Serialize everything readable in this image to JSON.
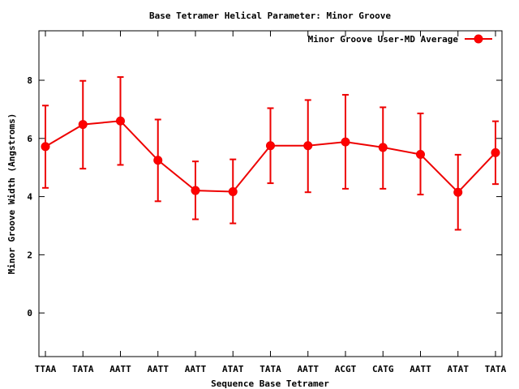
{
  "chart_data": {
    "type": "line",
    "title": "Base Tetramer Helical Parameter: Minor Groove",
    "xlabel": "Sequence Base Tetramer",
    "ylabel": "Minor Groove Width (Angstroms)",
    "ylim": [
      -1.5,
      9.7
    ],
    "yticks": [
      0,
      2,
      4,
      6,
      8
    ],
    "grid": false,
    "legend_position": "top-right",
    "categories": [
      "TTAA",
      "TATA",
      "AATT",
      "AATT",
      "AATT",
      "ATAT",
      "TATA",
      "AATT",
      "ACGT",
      "CATG",
      "AATT",
      "ATAT",
      "TATA"
    ],
    "series": [
      {
        "name": "Minor Groove User-MD Average",
        "color": "#ff0000",
        "values": [
          5.72,
          6.48,
          6.6,
          5.25,
          4.21,
          4.17,
          5.75,
          5.75,
          5.88,
          5.69,
          5.45,
          4.15,
          5.51
        ],
        "err_low": [
          4.3,
          4.96,
          5.09,
          3.84,
          3.22,
          3.08,
          4.46,
          4.15,
          4.27,
          4.27,
          4.07,
          2.86,
          4.43
        ],
        "err_high": [
          7.13,
          7.98,
          8.11,
          6.65,
          5.21,
          5.28,
          7.04,
          7.32,
          7.5,
          7.07,
          6.86,
          5.44,
          6.59
        ]
      }
    ]
  }
}
